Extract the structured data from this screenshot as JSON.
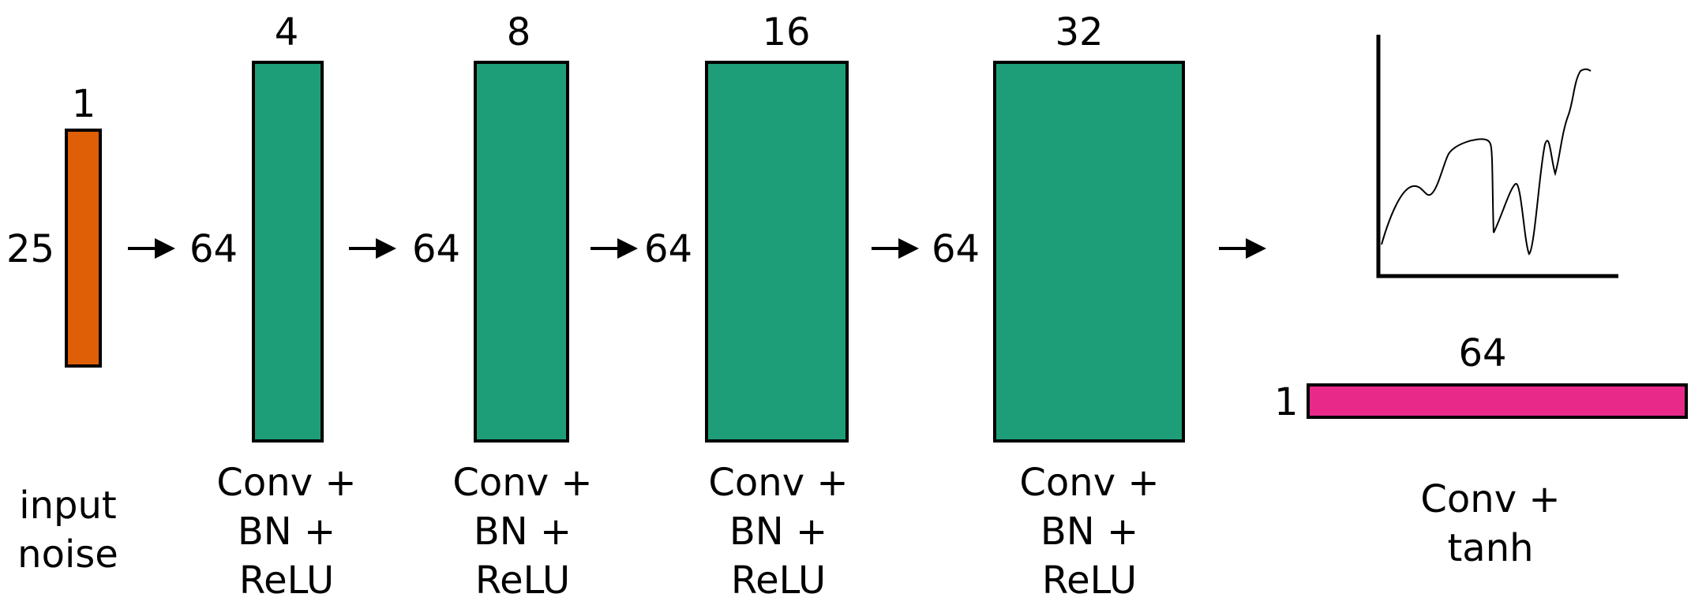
{
  "colors": {
    "input_fill": "#DE5F05",
    "hidden_fill": "#1E9E78",
    "output_fill": "#E8298A",
    "stroke": "#000000"
  },
  "input": {
    "width_label": "1",
    "height_label": "25",
    "caption": [
      "input",
      "noise"
    ]
  },
  "layers": [
    {
      "channels": "4",
      "length": "64",
      "caption": [
        "Conv +",
        "BN +",
        "ReLU"
      ]
    },
    {
      "channels": "8",
      "length": "64",
      "caption": [
        "Conv +",
        "BN +",
        "ReLU"
      ]
    },
    {
      "channels": "16",
      "length": "64",
      "caption": [
        "Conv +",
        "BN +",
        "ReLU"
      ]
    },
    {
      "channels": "32",
      "length": "64",
      "caption": [
        "Conv +",
        "BN +",
        "ReLU"
      ]
    }
  ],
  "output": {
    "length_label": "64",
    "channels_label": "1",
    "caption": [
      "Conv +",
      "tanh"
    ]
  },
  "icons": {
    "arrow": "right-arrow-icon",
    "plot": "waveform-plot-icon"
  }
}
